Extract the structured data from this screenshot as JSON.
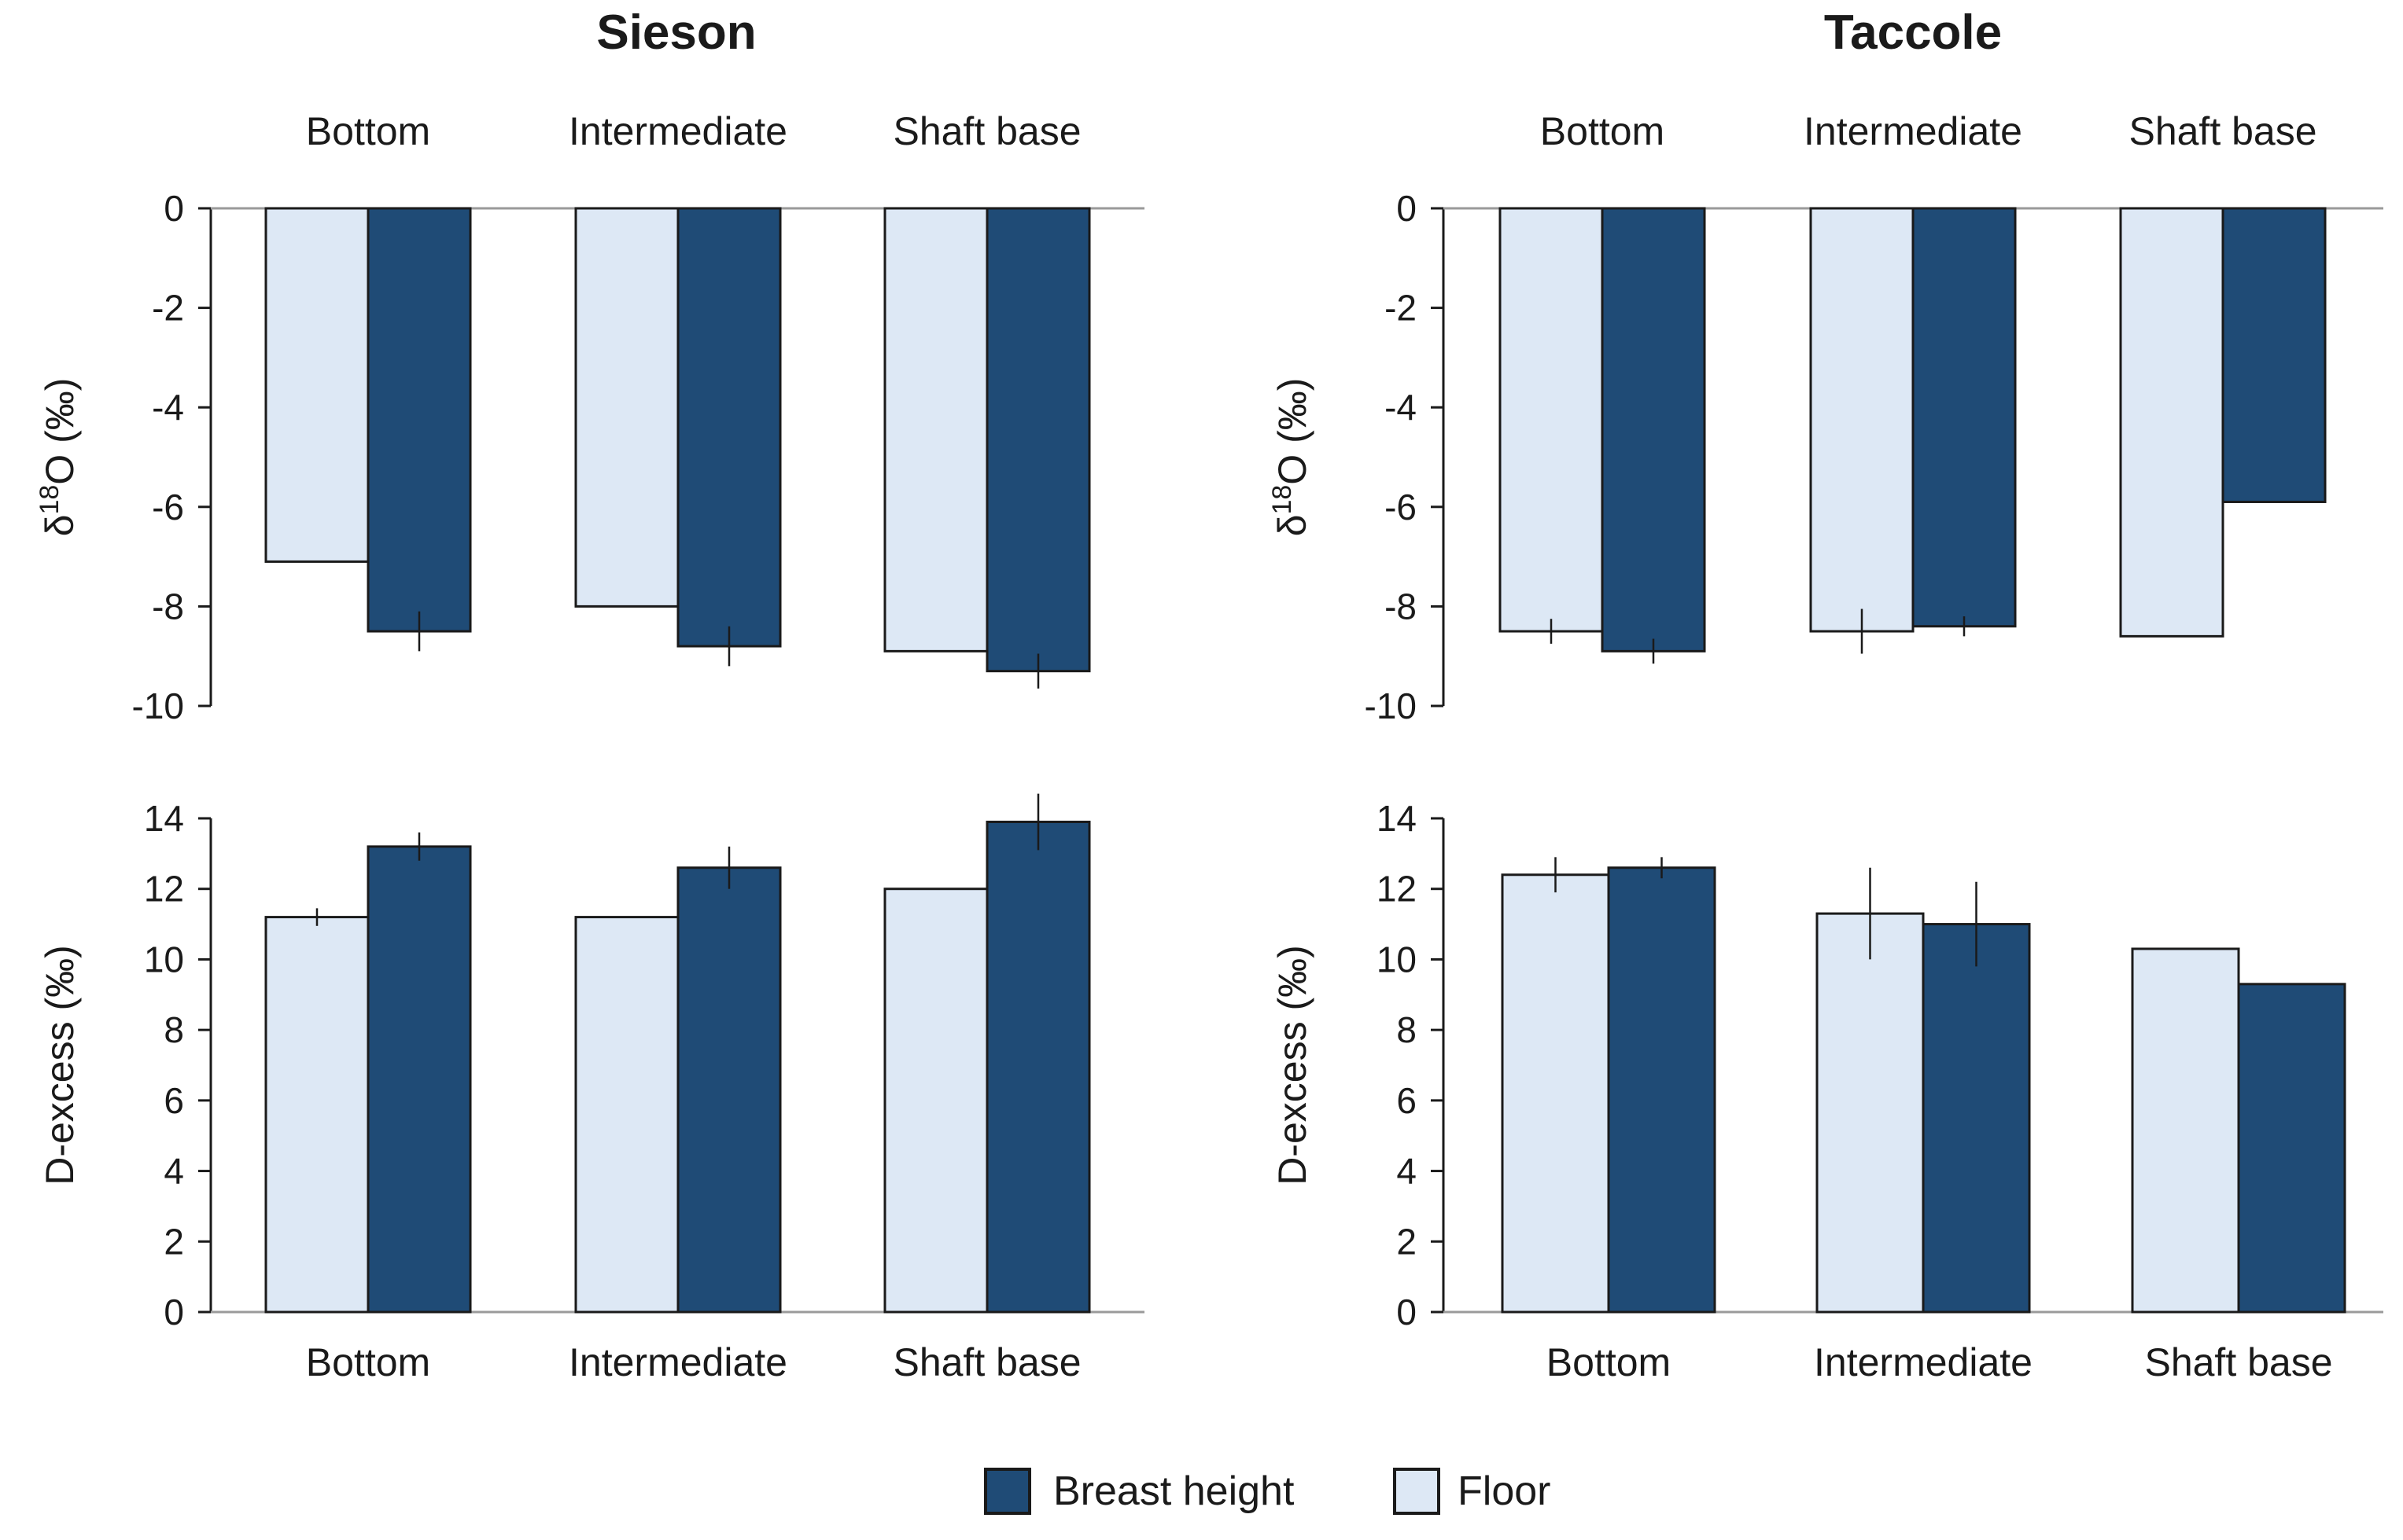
{
  "colors": {
    "floor": "#dde8f5",
    "breast_height": "#1f4b76",
    "edge": "#1a1a1a",
    "axis": "#9a9a9a"
  },
  "legend": [
    {
      "label": "Breast height",
      "color": "#1f4b76"
    },
    {
      "label": "Floor",
      "color": "#dde8f5"
    }
  ],
  "chart_data": [
    {
      "id": "sieson-d18o",
      "type": "bar",
      "title": "Sieson",
      "categories": [
        "Bottom",
        "Intermediate",
        "Shaft base"
      ],
      "ylabel": "δ18O (‰)",
      "ylim": [
        -10,
        0
      ],
      "yticks": [
        0,
        -2,
        -4,
        -6,
        -8,
        -10
      ],
      "series": [
        {
          "name": "Floor",
          "values": [
            -7.1,
            -8.0,
            -8.9
          ],
          "errors": [
            0,
            0,
            0
          ]
        },
        {
          "name": "Breast height",
          "values": [
            -8.5,
            -8.8,
            -9.3
          ],
          "errors": [
            0.4,
            0.4,
            0.35
          ]
        }
      ]
    },
    {
      "id": "taccole-d18o",
      "type": "bar",
      "title": "Taccole",
      "categories": [
        "Bottom",
        "Intermediate",
        "Shaft base"
      ],
      "ylabel": "δ18O (‰)",
      "ylim": [
        -10,
        0
      ],
      "yticks": [
        0,
        -2,
        -4,
        -6,
        -8,
        -10
      ],
      "series": [
        {
          "name": "Floor",
          "values": [
            -8.5,
            -8.5,
            -8.6
          ],
          "errors": [
            0.25,
            0.45,
            0
          ]
        },
        {
          "name": "Breast height",
          "values": [
            -8.9,
            -8.4,
            -5.9
          ],
          "errors": [
            0.25,
            0.2,
            0
          ]
        }
      ]
    },
    {
      "id": "sieson-dexcess",
      "type": "bar",
      "categories": [
        "Bottom",
        "Intermediate",
        "Shaft base"
      ],
      "ylabel": "D-excess (‰)",
      "ylim": [
        0,
        14
      ],
      "yticks": [
        0,
        2,
        4,
        6,
        8,
        10,
        12,
        14
      ],
      "series": [
        {
          "name": "Floor",
          "values": [
            11.2,
            11.2,
            12.0
          ],
          "errors": [
            0.25,
            0,
            0
          ]
        },
        {
          "name": "Breast height",
          "values": [
            13.2,
            12.6,
            13.9
          ],
          "errors": [
            0.4,
            0.6,
            0.8
          ]
        }
      ]
    },
    {
      "id": "taccole-dexcess",
      "type": "bar",
      "categories": [
        "Bottom",
        "Intermediate",
        "Shaft base"
      ],
      "ylabel": "D-excess (‰)",
      "ylim": [
        0,
        14
      ],
      "yticks": [
        0,
        2,
        4,
        6,
        8,
        10,
        12,
        14
      ],
      "series": [
        {
          "name": "Floor",
          "values": [
            12.4,
            11.3,
            10.3
          ],
          "errors": [
            0.5,
            1.3,
            0
          ]
        },
        {
          "name": "Breast height",
          "values": [
            12.6,
            11.0,
            9.3
          ],
          "errors": [
            0.3,
            1.2,
            0
          ]
        }
      ]
    }
  ]
}
